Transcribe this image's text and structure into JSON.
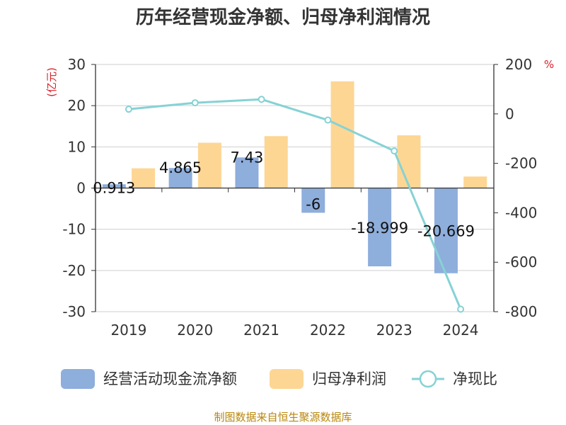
{
  "title": "历年经营现金净额、归母净利润情况",
  "source": "制图数据来自恒生聚源数据库",
  "colors": {
    "cash": "#8eaedc",
    "profit": "#fdd694",
    "ratio": "#86d2d4",
    "unit": "#d9202a",
    "source": "#b8860b"
  },
  "chart_data": {
    "type": "bar",
    "categories": [
      "2019",
      "2020",
      "2021",
      "2022",
      "2023",
      "2024"
    ],
    "series": [
      {
        "name": "经营活动现金流净额",
        "type": "bar",
        "axis": "left",
        "values": [
          0.913,
          4.865,
          7.43,
          -6,
          -18.999,
          -20.669
        ],
        "labels": [
          "0.913",
          "4.865",
          "7.43",
          "-6",
          "-18.999",
          "-20.669"
        ]
      },
      {
        "name": "归母净利润",
        "type": "bar",
        "axis": "left",
        "values": [
          4.8,
          11.0,
          12.6,
          25.9,
          12.8,
          2.8
        ]
      },
      {
        "name": "净现比",
        "type": "line",
        "axis": "right",
        "values": [
          19,
          45,
          59,
          -25,
          -150,
          -790
        ]
      }
    ],
    "left_axis": {
      "label": "(亿元)",
      "min": -30,
      "max": 30,
      "ticks": [
        30,
        20,
        10,
        0,
        -10,
        -20,
        -30
      ]
    },
    "right_axis": {
      "label": "%",
      "min": -800,
      "max": 200,
      "ticks": [
        200,
        0,
        -200,
        -400,
        -600,
        -800
      ]
    },
    "legend": [
      "经营活动现金流净额",
      "归母净利润",
      "净现比"
    ],
    "legend_position": "bottom"
  }
}
